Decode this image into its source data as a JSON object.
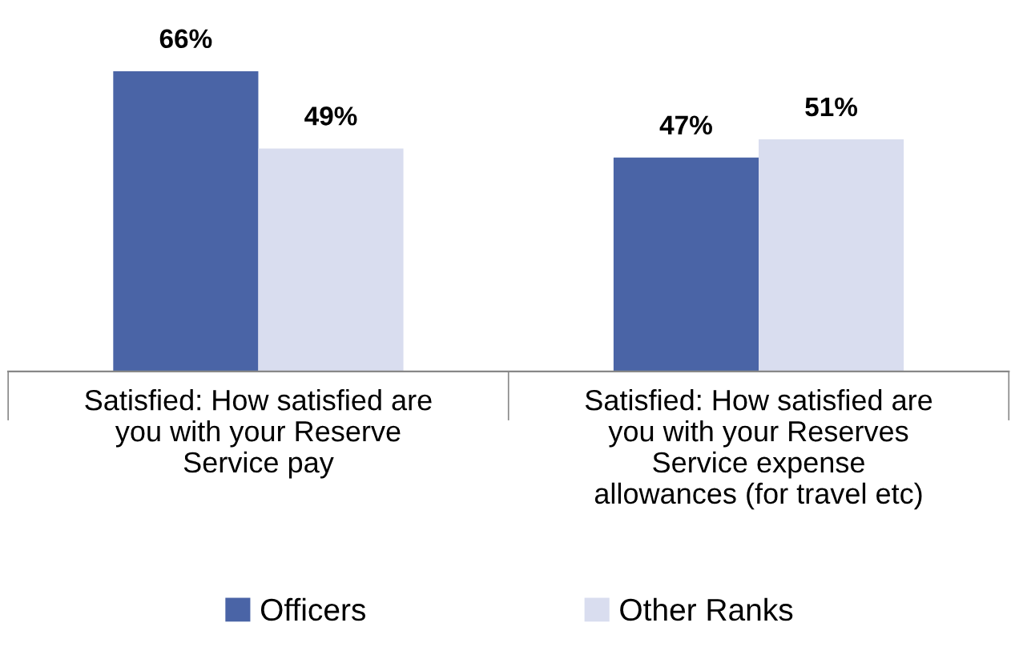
{
  "chart_data": {
    "type": "bar",
    "categories": [
      "Satisfied: How satisfied are\nyou with your Reserve\nService pay",
      "Satisfied: How satisfied are\nyou with your Reserves\nService expense\nallowances (for travel etc)"
    ],
    "series": [
      {
        "name": "Officers",
        "color": "#4a64a6",
        "values": [
          66,
          47
        ],
        "value_labels": [
          "66%",
          "47%"
        ]
      },
      {
        "name": "Other Ranks",
        "color": "#d9ddef",
        "values": [
          49,
          51
        ],
        "value_labels": [
          "49%",
          "51%"
        ]
      }
    ],
    "legend": "bottom",
    "grid": false
  }
}
